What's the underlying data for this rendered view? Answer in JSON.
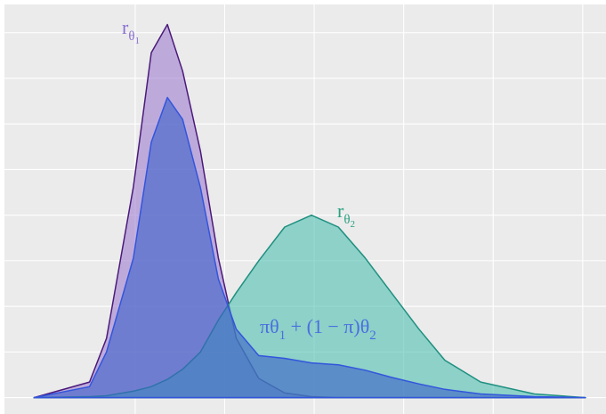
{
  "chart_data": {
    "type": "area",
    "x": [
      -0.13,
      0.49,
      0.68,
      0.98,
      1.18,
      1.36,
      1.53,
      1.73,
      1.93,
      2.13,
      2.38,
      2.67,
      2.97,
      3.27,
      3.57,
      3.87,
      4.17,
      4.46,
      4.86,
      5.46,
      6.03
    ],
    "series": [
      {
        "label": [
          {
            "text": "r",
            "level": 0
          },
          {
            "text": "θ",
            "level": 1
          },
          {
            "text": "1",
            "level": 2
          }
        ],
        "color": "#4b1a7a",
        "fill": "#9f7fd0",
        "label_color": "#8a6fd0",
        "values": [
          0,
          0.17,
          0.65,
          2.31,
          3.78,
          4.09,
          3.58,
          2.7,
          1.53,
          0.65,
          0.21,
          0.05,
          0.01,
          0,
          0,
          0,
          0,
          0,
          0,
          0,
          0
        ]
      },
      {
        "label": [
          {
            "text": "r",
            "level": 0
          },
          {
            "text": "θ",
            "level": 1
          },
          {
            "text": "2",
            "level": 2
          }
        ],
        "color": "#1f8f80",
        "fill": "#4fc0b0",
        "label_color": "#2aa080",
        "values": [
          0,
          0.01,
          0.02,
          0.07,
          0.12,
          0.2,
          0.31,
          0.5,
          0.85,
          1.15,
          1.5,
          1.87,
          2.0,
          1.87,
          1.53,
          1.14,
          0.75,
          0.41,
          0.17,
          0.04,
          0
        ]
      },
      {
        "label": [
          {
            "text": "πθ",
            "level": 0
          },
          {
            "text": "1",
            "level": 1
          },
          {
            "text": " + (1 − π)θ",
            "level": 0
          },
          {
            "text": "2",
            "level": 1
          }
        ],
        "color": "#3355dd",
        "fill": "#3a5fc8",
        "label_color": "#4a6ee0",
        "values": [
          0,
          0.12,
          0.5,
          1.53,
          2.8,
          3.29,
          3.05,
          2.3,
          1.3,
          0.75,
          0.46,
          0.43,
          0.38,
          0.36,
          0.3,
          0.22,
          0.15,
          0.09,
          0.04,
          0.01,
          0
        ]
      }
    ],
    "xlim": [
      -0.46,
      6.26
    ],
    "ylim": [
      -0.18,
      4.31
    ],
    "xticks": [
      1,
      2,
      3,
      4,
      5,
      6
    ],
    "yticks": [
      0,
      0.5,
      1,
      1.5,
      2,
      2.5,
      3,
      3.5,
      4
    ],
    "grid": true
  }
}
